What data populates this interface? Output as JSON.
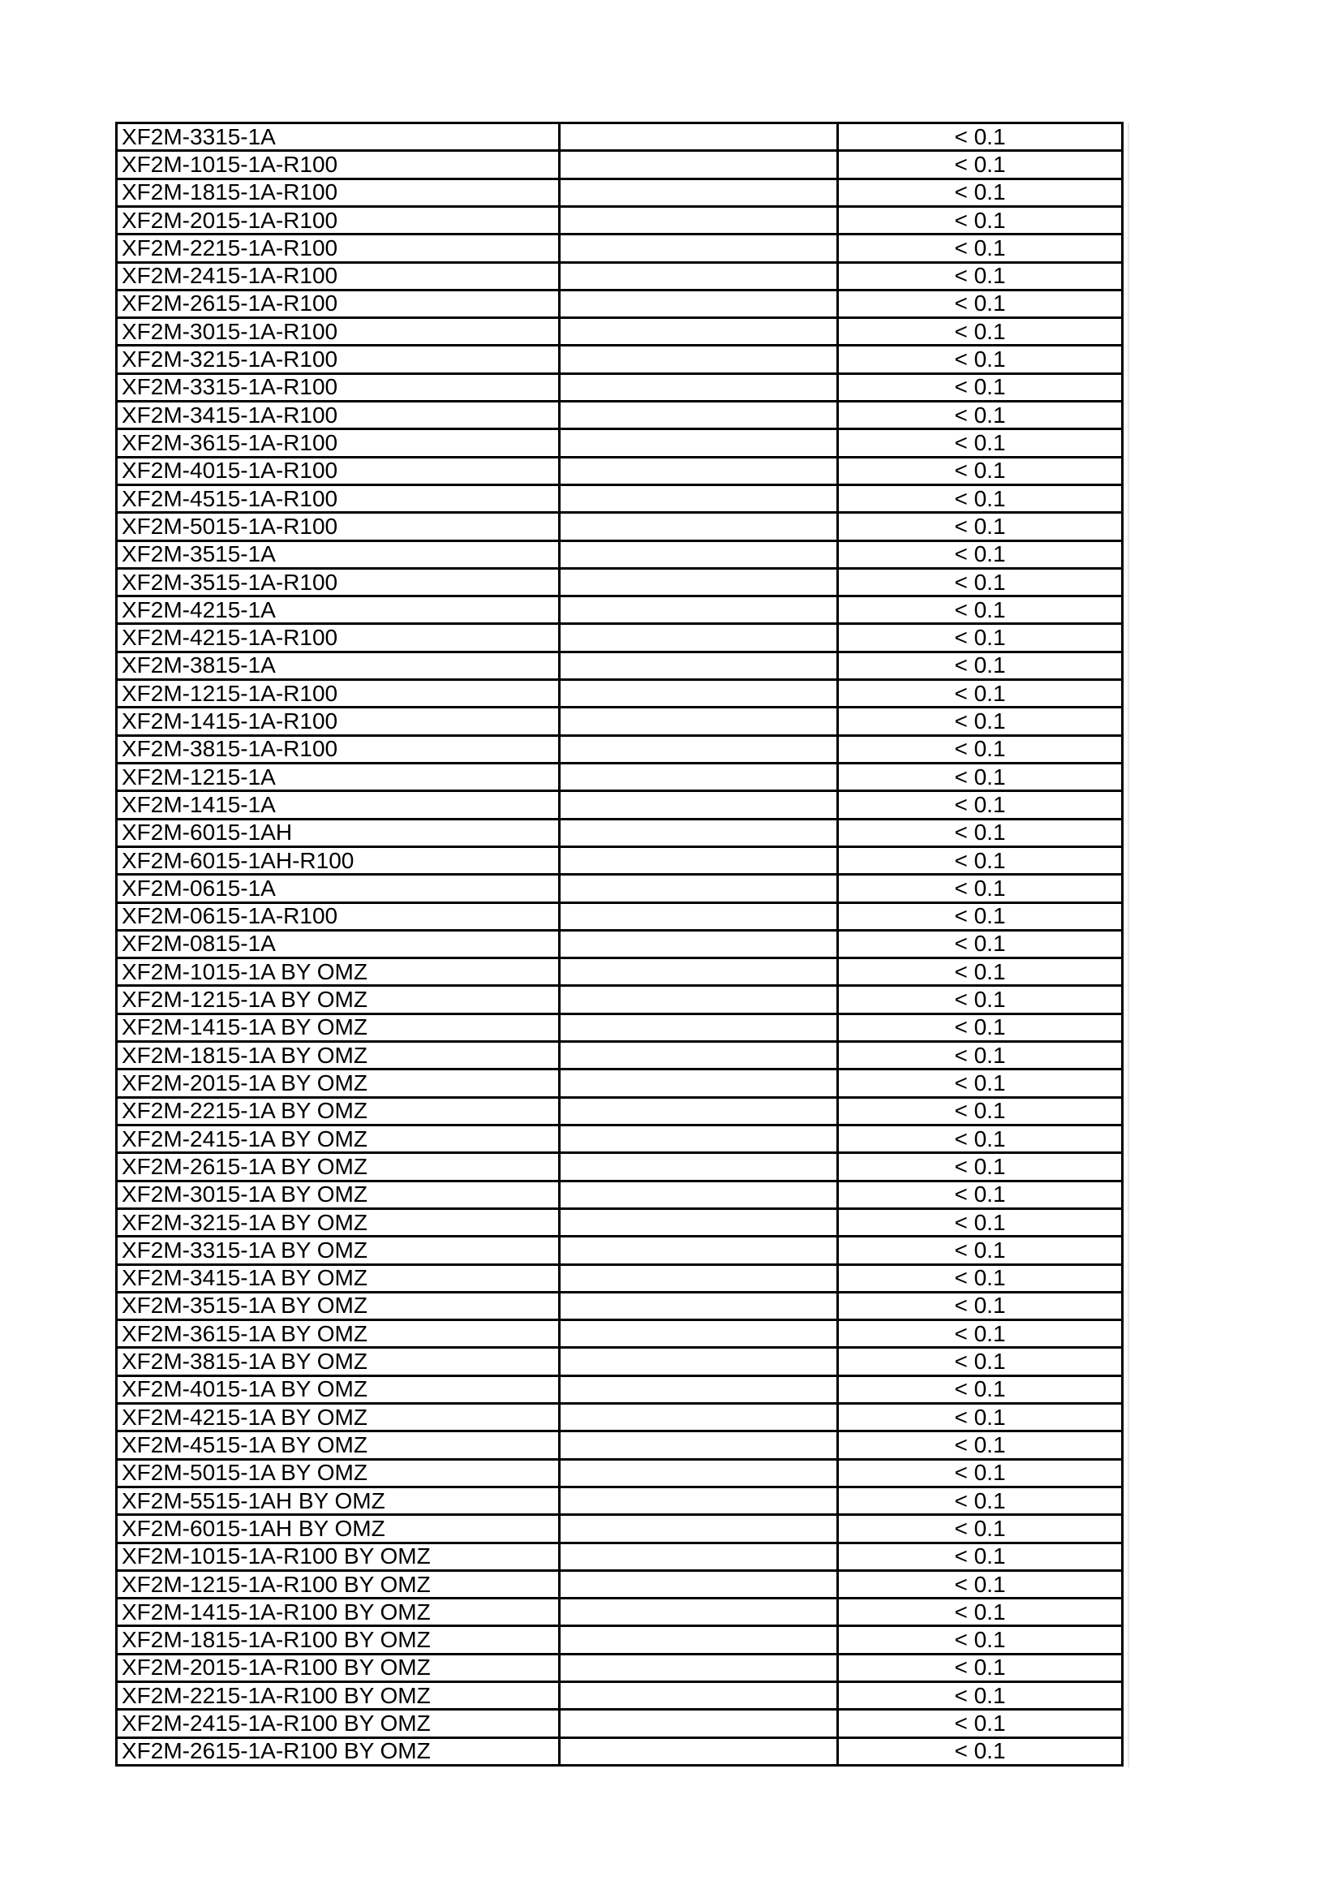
{
  "colors": {
    "page_background": "#ffffff",
    "grid_border": "#000000",
    "text": "#000000",
    "scan_artifact": "#e4e4e4"
  },
  "table": {
    "columns": [
      "part_number",
      "notes",
      "value"
    ],
    "rows": [
      {
        "part_number": "XF2M-3315-1A",
        "notes": "",
        "value": "< 0.1"
      },
      {
        "part_number": "XF2M-1015-1A-R100",
        "notes": "",
        "value": "< 0.1"
      },
      {
        "part_number": "XF2M-1815-1A-R100",
        "notes": "",
        "value": "< 0.1"
      },
      {
        "part_number": "XF2M-2015-1A-R100",
        "notes": "",
        "value": "< 0.1"
      },
      {
        "part_number": "XF2M-2215-1A-R100",
        "notes": "",
        "value": "< 0.1"
      },
      {
        "part_number": "XF2M-2415-1A-R100",
        "notes": "",
        "value": "< 0.1"
      },
      {
        "part_number": "XF2M-2615-1A-R100",
        "notes": "",
        "value": "< 0.1"
      },
      {
        "part_number": "XF2M-3015-1A-R100",
        "notes": "",
        "value": "< 0.1"
      },
      {
        "part_number": "XF2M-3215-1A-R100",
        "notes": "",
        "value": "< 0.1"
      },
      {
        "part_number": "XF2M-3315-1A-R100",
        "notes": "",
        "value": "< 0.1"
      },
      {
        "part_number": "XF2M-3415-1A-R100",
        "notes": "",
        "value": "< 0.1"
      },
      {
        "part_number": "XF2M-3615-1A-R100",
        "notes": "",
        "value": "< 0.1"
      },
      {
        "part_number": "XF2M-4015-1A-R100",
        "notes": "",
        "value": "< 0.1"
      },
      {
        "part_number": "XF2M-4515-1A-R100",
        "notes": "",
        "value": "< 0.1"
      },
      {
        "part_number": "XF2M-5015-1A-R100",
        "notes": "",
        "value": "< 0.1"
      },
      {
        "part_number": "XF2M-3515-1A",
        "notes": "",
        "value": "< 0.1"
      },
      {
        "part_number": "XF2M-3515-1A-R100",
        "notes": "",
        "value": "< 0.1"
      },
      {
        "part_number": "XF2M-4215-1A",
        "notes": "",
        "value": "< 0.1"
      },
      {
        "part_number": "XF2M-4215-1A-R100",
        "notes": "",
        "value": "< 0.1"
      },
      {
        "part_number": "XF2M-3815-1A",
        "notes": "",
        "value": "< 0.1"
      },
      {
        "part_number": "XF2M-1215-1A-R100",
        "notes": "",
        "value": "< 0.1"
      },
      {
        "part_number": "XF2M-1415-1A-R100",
        "notes": "",
        "value": "< 0.1"
      },
      {
        "part_number": "XF2M-3815-1A-R100",
        "notes": "",
        "value": "< 0.1"
      },
      {
        "part_number": "XF2M-1215-1A",
        "notes": "",
        "value": "< 0.1"
      },
      {
        "part_number": "XF2M-1415-1A",
        "notes": "",
        "value": "< 0.1"
      },
      {
        "part_number": "XF2M-6015-1AH",
        "notes": "",
        "value": "< 0.1"
      },
      {
        "part_number": "XF2M-6015-1AH-R100",
        "notes": "",
        "value": "< 0.1"
      },
      {
        "part_number": "XF2M-0615-1A",
        "notes": "",
        "value": "< 0.1"
      },
      {
        "part_number": "XF2M-0615-1A-R100",
        "notes": "",
        "value": "< 0.1"
      },
      {
        "part_number": "XF2M-0815-1A",
        "notes": "",
        "value": "< 0.1"
      },
      {
        "part_number": "XF2M-1015-1A BY OMZ",
        "notes": "",
        "value": "< 0.1"
      },
      {
        "part_number": "XF2M-1215-1A BY OMZ",
        "notes": "",
        "value": "< 0.1"
      },
      {
        "part_number": "XF2M-1415-1A BY OMZ",
        "notes": "",
        "value": "< 0.1"
      },
      {
        "part_number": "XF2M-1815-1A BY OMZ",
        "notes": "",
        "value": "< 0.1"
      },
      {
        "part_number": "XF2M-2015-1A BY OMZ",
        "notes": "",
        "value": "< 0.1"
      },
      {
        "part_number": "XF2M-2215-1A BY OMZ",
        "notes": "",
        "value": "< 0.1"
      },
      {
        "part_number": "XF2M-2415-1A BY OMZ",
        "notes": "",
        "value": "< 0.1"
      },
      {
        "part_number": "XF2M-2615-1A BY OMZ",
        "notes": "",
        "value": "< 0.1"
      },
      {
        "part_number": "XF2M-3015-1A BY OMZ",
        "notes": "",
        "value": "< 0.1"
      },
      {
        "part_number": "XF2M-3215-1A BY OMZ",
        "notes": "",
        "value": "< 0.1"
      },
      {
        "part_number": "XF2M-3315-1A BY OMZ",
        "notes": "",
        "value": "< 0.1"
      },
      {
        "part_number": "XF2M-3415-1A BY OMZ",
        "notes": "",
        "value": "< 0.1"
      },
      {
        "part_number": "XF2M-3515-1A BY OMZ",
        "notes": "",
        "value": "< 0.1"
      },
      {
        "part_number": "XF2M-3615-1A BY OMZ",
        "notes": "",
        "value": "< 0.1"
      },
      {
        "part_number": "XF2M-3815-1A BY OMZ",
        "notes": "",
        "value": "< 0.1"
      },
      {
        "part_number": "XF2M-4015-1A BY OMZ",
        "notes": "",
        "value": "< 0.1"
      },
      {
        "part_number": "XF2M-4215-1A BY OMZ",
        "notes": "",
        "value": "< 0.1"
      },
      {
        "part_number": "XF2M-4515-1A BY OMZ",
        "notes": "",
        "value": "< 0.1"
      },
      {
        "part_number": "XF2M-5015-1A BY OMZ",
        "notes": "",
        "value": "< 0.1"
      },
      {
        "part_number": "XF2M-5515-1AH BY OMZ",
        "notes": "",
        "value": "< 0.1"
      },
      {
        "part_number": "XF2M-6015-1AH BY OMZ",
        "notes": "",
        "value": "< 0.1"
      },
      {
        "part_number": "XF2M-1015-1A-R100 BY OMZ",
        "notes": "",
        "value": "< 0.1"
      },
      {
        "part_number": "XF2M-1215-1A-R100 BY OMZ",
        "notes": "",
        "value": "< 0.1"
      },
      {
        "part_number": "XF2M-1415-1A-R100 BY OMZ",
        "notes": "",
        "value": "< 0.1"
      },
      {
        "part_number": "XF2M-1815-1A-R100 BY OMZ",
        "notes": "",
        "value": "< 0.1"
      },
      {
        "part_number": "XF2M-2015-1A-R100 BY OMZ",
        "notes": "",
        "value": "< 0.1"
      },
      {
        "part_number": "XF2M-2215-1A-R100 BY OMZ",
        "notes": "",
        "value": "< 0.1"
      },
      {
        "part_number": "XF2M-2415-1A-R100 BY OMZ",
        "notes": "",
        "value": "< 0.1"
      },
      {
        "part_number": "XF2M-2615-1A-R100 BY OMZ",
        "notes": "",
        "value": "< 0.1"
      }
    ]
  }
}
